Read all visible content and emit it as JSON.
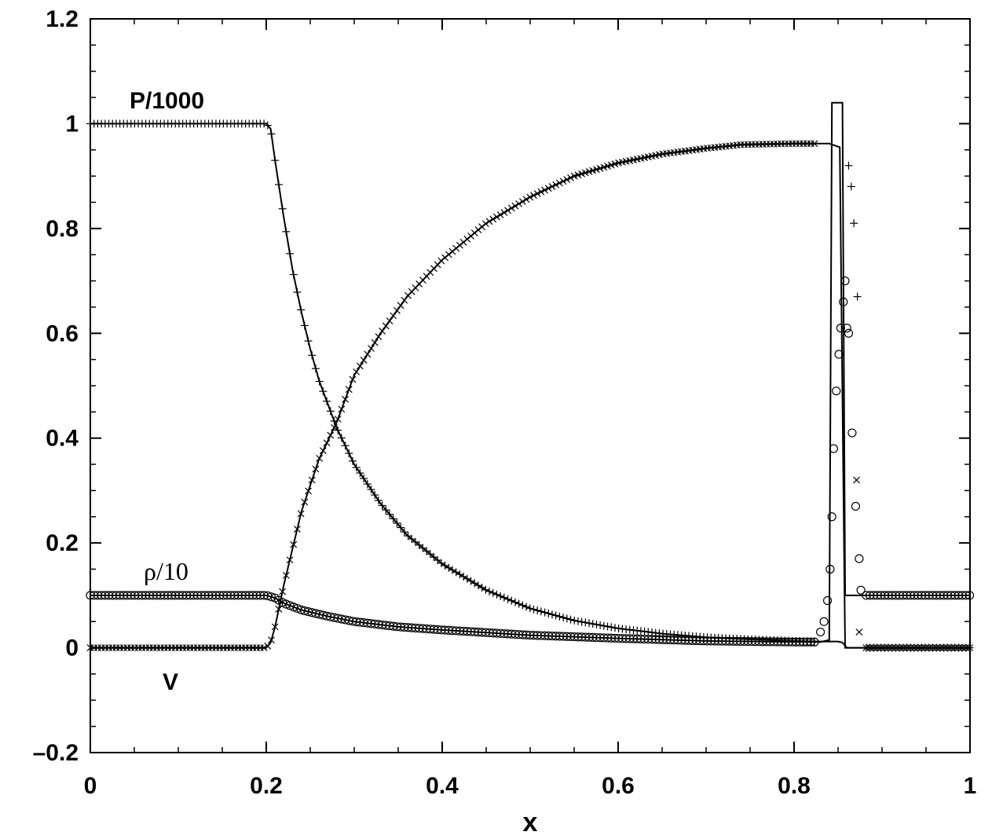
{
  "chart_data": {
    "type": "line",
    "xlabel": "x",
    "ylabel": "",
    "xlim": [
      0,
      1
    ],
    "ylim": [
      -0.2,
      1.2
    ],
    "x_ticks": [
      "0",
      "0.2",
      "0.4",
      "0.6",
      "0.8",
      "1"
    ],
    "y_ticks": [
      "–0.2",
      "0",
      "0.2",
      "0.4",
      "0.6",
      "0.8",
      "1",
      "1.2"
    ],
    "grid": false,
    "annotations": [
      {
        "text": "P/1000",
        "x": 0.1,
        "y": 1.04
      },
      {
        "text": "ρ/10",
        "x": 0.1,
        "y": 0.14
      },
      {
        "text": "V",
        "x": 0.095,
        "y": -0.07
      }
    ],
    "series": [
      {
        "role": "pressure",
        "marker": "plus",
        "x": [
          0,
          0.2,
          0.205,
          0.21,
          0.22,
          0.23,
          0.24,
          0.25,
          0.26,
          0.28,
          0.3,
          0.33,
          0.36,
          0.4,
          0.45,
          0.5,
          0.55,
          0.6,
          0.65,
          0.7,
          0.75,
          0.8,
          0.83,
          0.845,
          0.85,
          0.855,
          0.86,
          1
        ],
        "y": [
          1.0,
          1.0,
          0.99,
          0.93,
          0.82,
          0.72,
          0.64,
          0.57,
          0.51,
          0.42,
          0.35,
          0.275,
          0.215,
          0.16,
          0.11,
          0.075,
          0.052,
          0.037,
          0.027,
          0.02,
          0.016,
          0.013,
          0.012,
          0.012,
          0.012,
          0.01,
          0.0,
          0.0
        ],
        "markers_x": [
          0.862,
          0.865,
          0.868,
          0.872
        ],
        "markers_y": [
          0.92,
          0.88,
          0.81,
          0.67
        ]
      },
      {
        "role": "velocity",
        "marker": "cross",
        "x": [
          0,
          0.2,
          0.205,
          0.21,
          0.22,
          0.24,
          0.26,
          0.28,
          0.3,
          0.33,
          0.36,
          0.4,
          0.45,
          0.5,
          0.55,
          0.6,
          0.65,
          0.7,
          0.74,
          0.8,
          0.84,
          0.852,
          0.858,
          1
        ],
        "y": [
          0.0,
          0.0,
          0.01,
          0.04,
          0.12,
          0.26,
          0.36,
          0.43,
          0.52,
          0.6,
          0.67,
          0.74,
          0.81,
          0.86,
          0.9,
          0.925,
          0.942,
          0.953,
          0.96,
          0.962,
          0.962,
          0.955,
          0.0,
          0.0
        ],
        "markers_x": [
          0.871,
          0.874
        ],
        "markers_y": [
          0.32,
          0.03
        ]
      },
      {
        "role": "density",
        "marker": "circle",
        "x": [
          0,
          0.2,
          0.21,
          0.22,
          0.24,
          0.27,
          0.3,
          0.35,
          0.4,
          0.5,
          0.6,
          0.7,
          0.8,
          0.83,
          0.84,
          0.843,
          0.847,
          0.851,
          0.855,
          0.858,
          0.86,
          1
        ],
        "y": [
          0.1,
          0.1,
          0.095,
          0.085,
          0.072,
          0.06,
          0.05,
          0.04,
          0.034,
          0.024,
          0.018,
          0.013,
          0.011,
          0.011,
          0.015,
          1.04,
          1.04,
          1.04,
          1.04,
          0.1,
          0.1,
          0.1
        ],
        "markers_x": [
          0.83,
          0.834,
          0.838,
          0.841,
          0.843,
          0.845,
          0.848,
          0.851,
          0.853,
          0.856,
          0.858,
          0.86,
          0.862,
          0.866,
          0.87,
          0.874,
          0.876
        ],
        "markers_y": [
          0.03,
          0.05,
          0.09,
          0.15,
          0.25,
          0.38,
          0.49,
          0.56,
          0.61,
          0.66,
          0.7,
          0.61,
          0.6,
          0.41,
          0.27,
          0.17,
          0.11
        ]
      }
    ]
  }
}
